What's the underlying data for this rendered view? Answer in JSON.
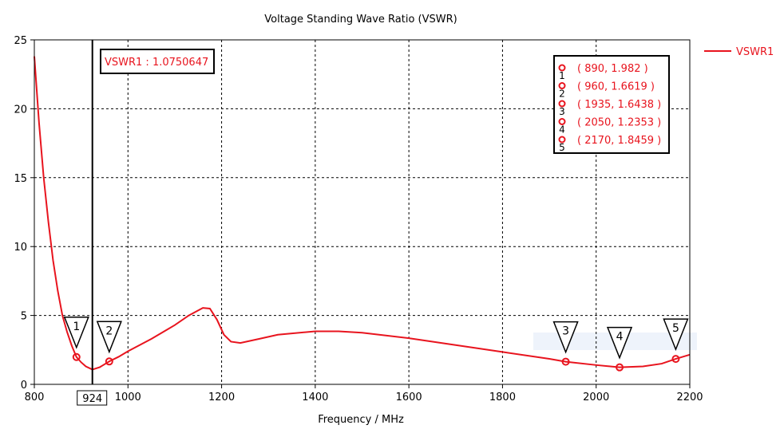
{
  "chart_data": {
    "type": "line",
    "title": "Voltage Standing Wave Ratio (VSWR)",
    "xlabel": "Frequency / MHz",
    "ylabel": "",
    "xlim": [
      800,
      2200
    ],
    "ylim": [
      0,
      25
    ],
    "xticks": [
      800,
      1000,
      1200,
      1400,
      1600,
      1800,
      2000,
      2200
    ],
    "yticks": [
      0,
      5,
      10,
      15,
      20,
      25
    ],
    "grid": true,
    "legend": {
      "position": "right",
      "entries": [
        "VSWR1"
      ]
    },
    "series": [
      {
        "name": "VSWR1",
        "color": "#e8141e",
        "x": [
          800,
          810,
          820,
          830,
          840,
          850,
          860,
          870,
          880,
          890,
          900,
          910,
          924,
          940,
          960,
          980,
          1000,
          1050,
          1080,
          1100,
          1130,
          1160,
          1175,
          1190,
          1205,
          1220,
          1240,
          1280,
          1320,
          1400,
          1450,
          1500,
          1600,
          1700,
          1800,
          1900,
          1935,
          2000,
          2050,
          2100,
          2140,
          2170,
          2200
        ],
        "y": [
          23.8,
          19,
          15,
          11.8,
          9,
          6.8,
          5,
          3.8,
          2.8,
          1.982,
          1.6,
          1.3,
          1.075,
          1.25,
          1.6619,
          2.0,
          2.4,
          3.3,
          3.9,
          4.3,
          5.0,
          5.55,
          5.5,
          4.7,
          3.6,
          3.1,
          3.0,
          3.3,
          3.6,
          3.85,
          3.85,
          3.75,
          3.35,
          2.85,
          2.35,
          1.85,
          1.6438,
          1.4,
          1.2353,
          1.3,
          1.5,
          1.8459,
          2.15
        ]
      }
    ],
    "cursor": {
      "x": 924,
      "label": "924",
      "readout": "VSWR1 : 1.0750647"
    },
    "markers": [
      {
        "id": "1",
        "x": 890,
        "y": 1.982,
        "label": "( 890, 1.982 )"
      },
      {
        "id": "2",
        "x": 960,
        "y": 1.6619,
        "label": "( 960, 1.6619 )"
      },
      {
        "id": "3",
        "x": 1935,
        "y": 1.6438,
        "label": "( 1935, 1.6438 )"
      },
      {
        "id": "4",
        "x": 2050,
        "y": 1.2353,
        "label": "( 2050, 1.2353 )"
      },
      {
        "id": "5",
        "x": 2170,
        "y": 1.8459,
        "label": "( 2170, 1.8459 )"
      }
    ]
  }
}
